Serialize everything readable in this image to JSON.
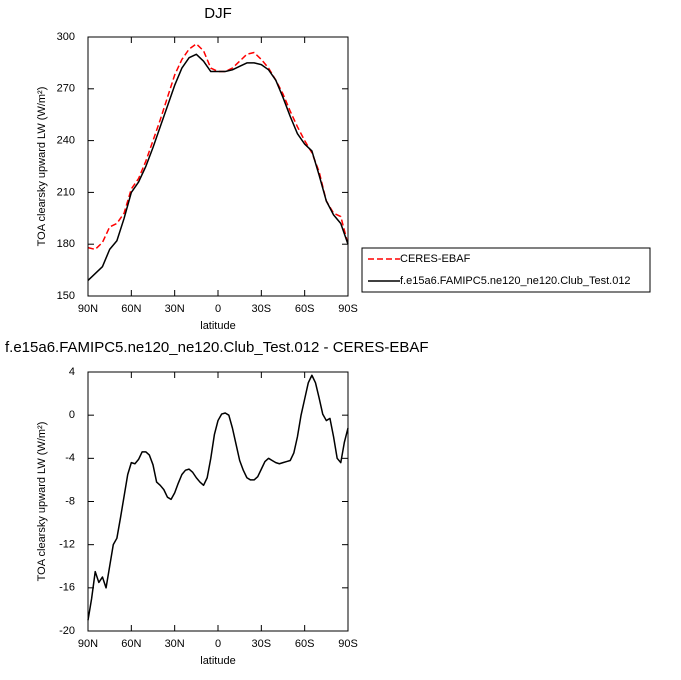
{
  "chart_data": [
    {
      "type": "line",
      "title": "DJF",
      "xlabel": "latitude",
      "ylabel": "TOA clearsky upward LW (W/m²)",
      "x": [
        90,
        85,
        80,
        75,
        70,
        65,
        60,
        55,
        50,
        45,
        40,
        35,
        30,
        25,
        20,
        15,
        10,
        5,
        0,
        -5,
        -10,
        -15,
        -20,
        -25,
        -30,
        -35,
        -40,
        -45,
        -50,
        -55,
        -60,
        -65,
        -70,
        -75,
        -80,
        -85,
        -90
      ],
      "xlim": [
        90,
        -90
      ],
      "xticks": [
        {
          "value": 90,
          "label": "90N"
        },
        {
          "value": 60,
          "label": "60N"
        },
        {
          "value": 30,
          "label": "30N"
        },
        0,
        {
          "value": -30,
          "label": "30S"
        },
        {
          "value": -60,
          "label": "60S"
        },
        {
          "value": -90,
          "label": "90S"
        }
      ],
      "ylim": [
        150,
        300
      ],
      "yticks": [
        150,
        180,
        210,
        240,
        270,
        300
      ],
      "series": [
        {
          "name": "CERES-EBAF",
          "color": "#ff0000",
          "line_style": "dashed",
          "values": [
            178,
            177,
            181,
            190,
            192,
            198,
            212,
            218,
            228,
            240,
            252,
            265,
            278,
            287,
            293,
            296,
            292,
            282,
            280,
            280,
            282,
            286,
            290,
            291,
            287,
            282,
            275,
            267,
            257,
            248,
            240,
            233,
            222,
            205,
            198,
            196,
            180
          ]
        },
        {
          "name": "f.e15a6.FAMIPC5.ne120_ne120.Club_Test.012",
          "color": "#000000",
          "line_style": "solid",
          "values": [
            159,
            163,
            167,
            177,
            182,
            195,
            210,
            216,
            225,
            236,
            248,
            260,
            272,
            282,
            288,
            290,
            286,
            280,
            280,
            280,
            281,
            283,
            285,
            285,
            284,
            281,
            275,
            265,
            254,
            244,
            238,
            234,
            220,
            205,
            197,
            192,
            180
          ]
        }
      ]
    },
    {
      "type": "line",
      "title": "f.e15a6.FAMIPC5.ne120_ne120.Club_Test.012 - CERES-EBAF",
      "xlabel": "latitude",
      "ylabel": "TOA clearsky upward LW (W/m²)",
      "x": [
        90,
        87.5,
        85,
        82.5,
        80,
        77.5,
        75,
        72.5,
        70,
        67.5,
        65,
        62.5,
        60,
        57.5,
        55,
        52.5,
        50,
        47.5,
        45,
        42.5,
        40,
        37.5,
        35,
        32.5,
        30,
        27.5,
        25,
        22.5,
        20,
        17.5,
        15,
        12.5,
        10,
        7.5,
        5,
        2.5,
        0,
        -2.5,
        -5,
        -7.5,
        -10,
        -12.5,
        -15,
        -17.5,
        -20,
        -22.5,
        -25,
        -27.5,
        -30,
        -32.5,
        -35,
        -37.5,
        -40,
        -42.5,
        -45,
        -47.5,
        -50,
        -52.5,
        -55,
        -57.5,
        -60,
        -62.5,
        -65,
        -67.5,
        -70,
        -72.5,
        -75,
        -77.5,
        -80,
        -82.5,
        -85,
        -87.5,
        -90
      ],
      "xlim": [
        90,
        -90
      ],
      "xticks": [
        {
          "value": 90,
          "label": "90N"
        },
        {
          "value": 60,
          "label": "60N"
        },
        {
          "value": 30,
          "label": "30N"
        },
        0,
        {
          "value": -30,
          "label": "30S"
        },
        {
          "value": -60,
          "label": "60S"
        },
        {
          "value": -90,
          "label": "90S"
        }
      ],
      "ylim": [
        -20,
        4
      ],
      "yticks": [
        -20,
        -16,
        -12,
        -8,
        -4,
        0,
        4
      ],
      "series": [
        {
          "color": "#000000",
          "line_style": "solid",
          "values": [
            -19,
            -17,
            -14.5,
            -15.5,
            -15,
            -16,
            -14,
            -12,
            -11.4,
            -9.5,
            -7.5,
            -5.5,
            -4.4,
            -4.5,
            -4.1,
            -3.4,
            -3.4,
            -3.7,
            -4.6,
            -6.2,
            -6.5,
            -6.9,
            -7.6,
            -7.8,
            -7.2,
            -6.3,
            -5.5,
            -5.1,
            -5,
            -5.3,
            -5.8,
            -6.2,
            -6.5,
            -5.8,
            -4,
            -1.8,
            -0.5,
            0.1,
            0.2,
            0,
            -1.2,
            -2.7,
            -4.2,
            -5.1,
            -5.8,
            -6,
            -6,
            -5.7,
            -5,
            -4.3,
            -4,
            -4.2,
            -4.4,
            -4.5,
            -4.4,
            -4.3,
            -4.2,
            -3.5,
            -2,
            0,
            1.5,
            3,
            3.7,
            3,
            1.6,
            0.1,
            -0.5,
            -0.3,
            -2,
            -4,
            -4.4,
            -2.5,
            -1.2
          ]
        }
      ]
    }
  ]
}
